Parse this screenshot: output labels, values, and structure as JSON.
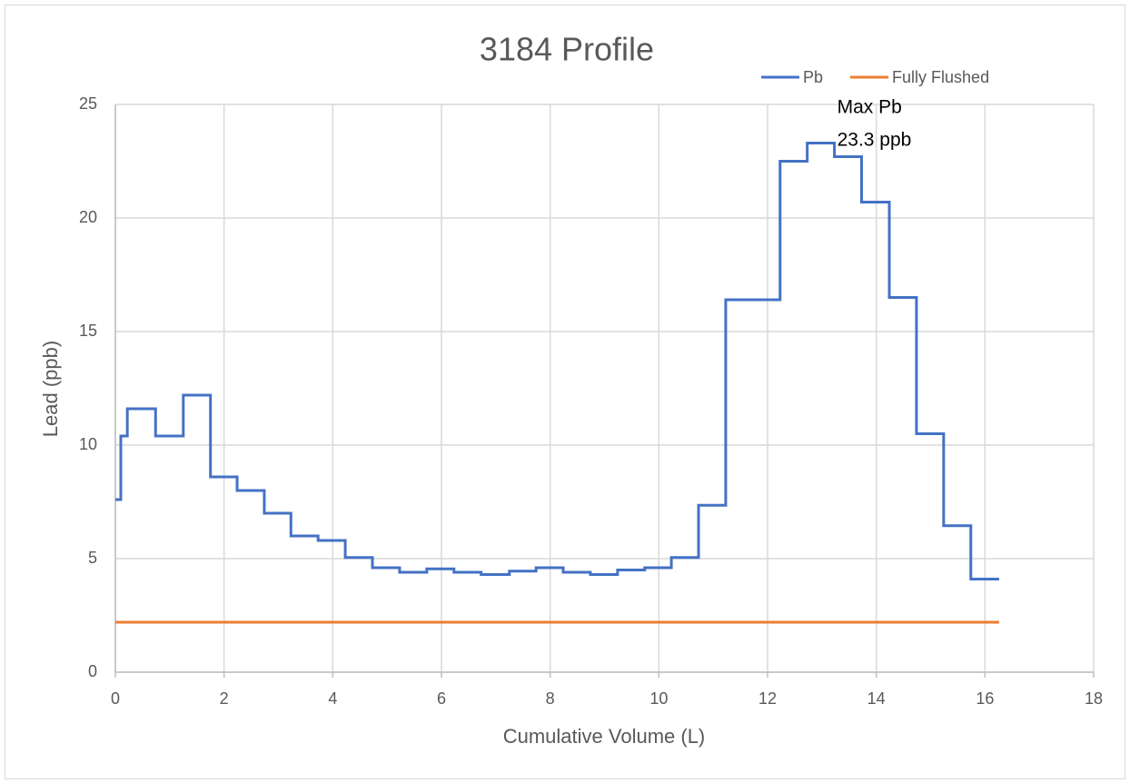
{
  "chart_data": {
    "type": "step",
    "title": "3184 Profile",
    "xlabel": "Cumulative Volume (L)",
    "ylabel": "Lead (ppb)",
    "xlim": [
      0,
      18
    ],
    "ylim": [
      0,
      25
    ],
    "xticks": [
      0,
      2,
      4,
      6,
      8,
      10,
      12,
      14,
      16,
      18
    ],
    "yticks": [
      0,
      5,
      10,
      15,
      20,
      25
    ],
    "grid": true,
    "legend": "top-right",
    "series": [
      {
        "name": "Pb",
        "color": "#4472c4",
        "x": [
          0,
          0.1,
          0.22,
          0.74,
          1.25,
          1.75,
          2.24,
          2.74,
          3.23,
          3.73,
          4.23,
          4.73,
          5.23,
          5.73,
          6.23,
          6.73,
          7.25,
          7.74,
          8.24,
          8.74,
          9.24,
          9.74,
          10.23,
          10.73,
          11.23,
          12.23,
          12.73,
          13.23,
          13.73,
          14.24,
          14.74,
          15.24,
          15.74,
          16.26
        ],
        "values": [
          7.6,
          10.4,
          11.6,
          10.4,
          12.2,
          8.6,
          8.0,
          7.0,
          6.0,
          5.8,
          5.05,
          4.6,
          4.4,
          4.55,
          4.4,
          4.3,
          4.45,
          4.6,
          4.4,
          4.3,
          4.5,
          4.6,
          5.05,
          7.35,
          16.4,
          22.5,
          23.3,
          22.7,
          20.7,
          16.5,
          10.5,
          6.45,
          4.1,
          4.1
        ]
      },
      {
        "name": "Fully Flushed",
        "color": "#ed7d31",
        "x": [
          0,
          16.26
        ],
        "values": [
          2.2,
          2.2
        ]
      }
    ],
    "annotation": [
      "Max Pb",
      "23.3 ppb"
    ]
  }
}
